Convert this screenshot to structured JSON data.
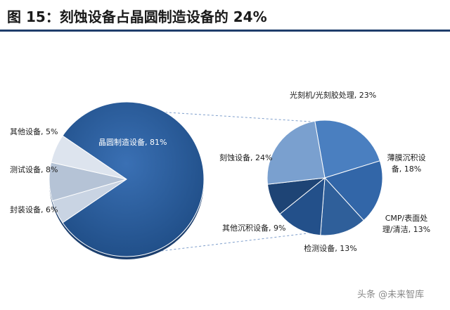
{
  "title": "图 15：刻蚀设备占晶圆制造设备的 24%",
  "watermark": "头条 @未来智库",
  "colors": {
    "title_rule": "#1f3d6b",
    "main_pie": "#2b5d9c",
    "main_pie_shadow": "#1c3f6e",
    "outer_slices": [
      "#c9d4e3",
      "#b5c3d6",
      "#dde4ee"
    ],
    "sub_pie": [
      "#4a7fc0",
      "#3266a8",
      "#2f5f9a",
      "#23508a",
      "#1e4475",
      "#7aa0cf"
    ],
    "connector": "#7f9fcc"
  },
  "chart_data": [
    {
      "type": "pie",
      "categories": [
        "晶圆制造设备",
        "其他设备",
        "测试设备",
        "封装设备"
      ],
      "values": [
        81,
        5,
        8,
        6
      ],
      "labels": [
        "晶圆制造设备, 81%",
        "其他设备, 5%",
        "测试设备, 8%",
        "封装设备, 6%"
      ]
    },
    {
      "type": "pie",
      "categories": [
        "光刻机/光刻胶处理",
        "薄膜沉积设备",
        "CMP/表面处理/清洁",
        "检测设备",
        "其他沉积设备",
        "刻蚀设备"
      ],
      "values": [
        23,
        18,
        13,
        13,
        9,
        24
      ],
      "labels": [
        "光刻机/光刻胶处理, 23%",
        "薄膜沉积设备, 18%",
        "CMP/表面处理/清洁, 13%",
        "检测设备, 13%",
        "其他沉积设备, 9%",
        "刻蚀设备, 24%"
      ]
    }
  ]
}
